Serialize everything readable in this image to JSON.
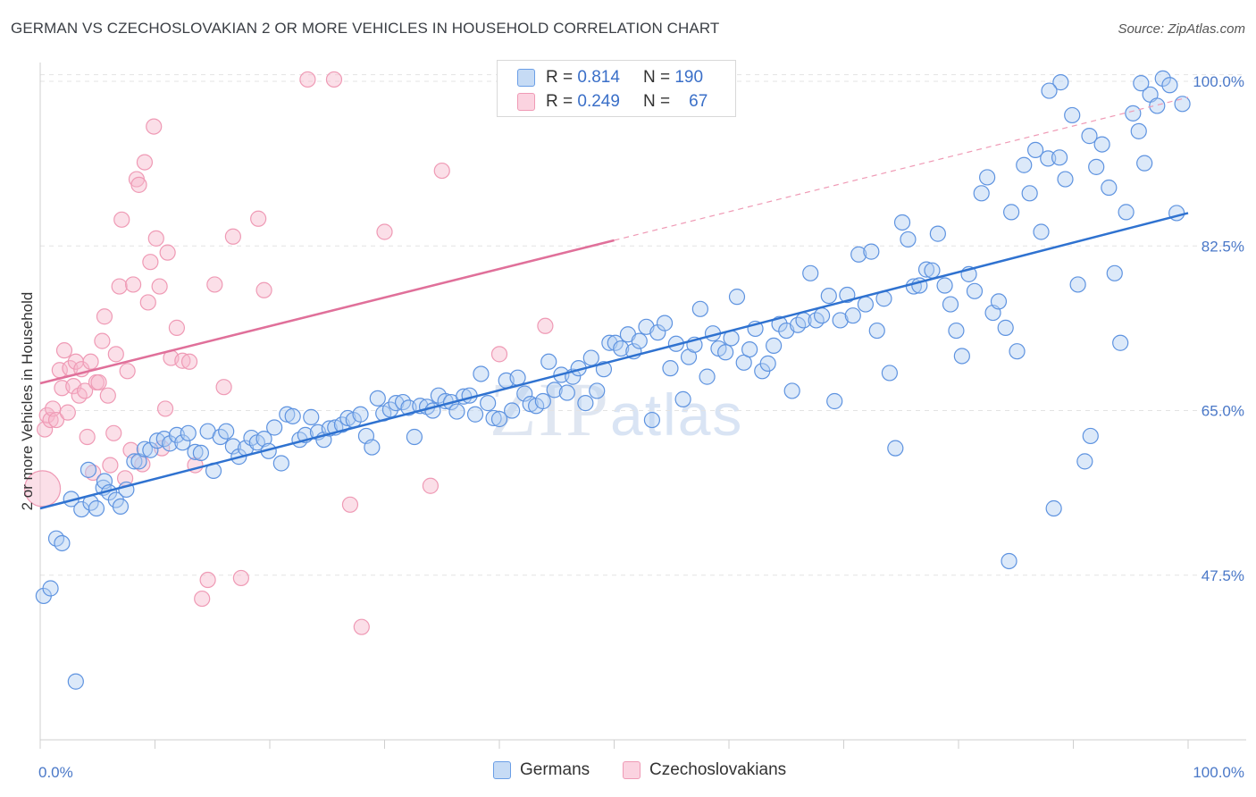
{
  "title": "GERMAN VS CZECHOSLOVAKIAN 2 OR MORE VEHICLES IN HOUSEHOLD CORRELATION CHART",
  "source": "Source: ZipAtlas.com",
  "watermark": {
    "zip": "ZIP",
    "atlas": "atlas"
  },
  "legend": {
    "german": {
      "r_label": "R = ",
      "r_value": "0.814",
      "n_label": "N = ",
      "n_value": "190",
      "color": "#6a9ee6"
    },
    "czech": {
      "r_label": "R = ",
      "r_value": "0.249",
      "n_label": "N = ",
      "n_value": "67",
      "color": "#ef9ab5"
    }
  },
  "bottom_legend": {
    "german": "Germans",
    "czech": "Czechoslovakians"
  },
  "chart_data": {
    "type": "scatter",
    "title": "GERMAN VS CZECHOSLOVAKIAN 2 OR MORE VEHICLES IN HOUSEHOLD CORRELATION CHART",
    "xlabel": "",
    "ylabel": "2 or more Vehicles in Household",
    "xlim": [
      0,
      100
    ],
    "ylim": [
      30,
      102
    ],
    "x_tick_labels": [
      "0.0%",
      "100.0%"
    ],
    "y_ticks": [
      47.5,
      65.0,
      82.5,
      100.0
    ],
    "y_tick_labels": [
      "47.5%",
      "65.0%",
      "82.5%",
      "100.0%"
    ],
    "series": [
      {
        "name": "Germans",
        "color": "#6a9ee6",
        "trend": {
          "x": [
            0,
            100
          ],
          "y": [
            54.6,
            86.0
          ],
          "style": "solid"
        },
        "points": [
          [
            0.3,
            45.3
          ],
          [
            0.9,
            46.1
          ],
          [
            1.4,
            51.4
          ],
          [
            1.9,
            50.9
          ],
          [
            2.7,
            55.6
          ],
          [
            3.1,
            36.2
          ],
          [
            3.6,
            54.5
          ],
          [
            4.2,
            58.7
          ],
          [
            4.4,
            55.2
          ],
          [
            4.9,
            54.6
          ],
          [
            5.5,
            56.8
          ],
          [
            5.6,
            57.5
          ],
          [
            6.0,
            56.3
          ],
          [
            6.6,
            55.5
          ],
          [
            7.0,
            54.8
          ],
          [
            7.5,
            56.6
          ],
          [
            8.2,
            59.6
          ],
          [
            8.6,
            59.6
          ],
          [
            9.1,
            60.9
          ],
          [
            9.6,
            60.8
          ],
          [
            10.2,
            61.8
          ],
          [
            10.8,
            62.0
          ],
          [
            11.3,
            61.5
          ],
          [
            11.9,
            62.4
          ],
          [
            12.4,
            61.6
          ],
          [
            12.9,
            62.6
          ],
          [
            13.5,
            60.6
          ],
          [
            14.0,
            60.5
          ],
          [
            14.6,
            62.8
          ],
          [
            15.1,
            58.6
          ],
          [
            15.7,
            62.2
          ],
          [
            16.2,
            62.8
          ],
          [
            16.8,
            61.2
          ],
          [
            17.3,
            60.1
          ],
          [
            17.9,
            61.0
          ],
          [
            18.4,
            62.1
          ],
          [
            18.9,
            61.6
          ],
          [
            19.5,
            62.0
          ],
          [
            19.9,
            60.7
          ],
          [
            20.4,
            63.2
          ],
          [
            21.0,
            59.4
          ],
          [
            21.5,
            64.6
          ],
          [
            22.0,
            64.4
          ],
          [
            22.6,
            61.9
          ],
          [
            23.1,
            62.4
          ],
          [
            23.6,
            64.3
          ],
          [
            24.2,
            62.7
          ],
          [
            24.7,
            61.9
          ],
          [
            25.2,
            63.1
          ],
          [
            25.7,
            63.2
          ],
          [
            26.3,
            63.5
          ],
          [
            26.8,
            64.2
          ],
          [
            27.3,
            64.0
          ],
          [
            27.9,
            64.6
          ],
          [
            28.4,
            62.3
          ],
          [
            28.9,
            61.1
          ],
          [
            29.4,
            66.3
          ],
          [
            29.9,
            64.7
          ],
          [
            30.5,
            65.1
          ],
          [
            31.0,
            65.8
          ],
          [
            31.6,
            65.9
          ],
          [
            32.1,
            65.3
          ],
          [
            32.6,
            62.2
          ],
          [
            33.1,
            65.5
          ],
          [
            33.7,
            65.4
          ],
          [
            34.2,
            65.0
          ],
          [
            34.7,
            66.6
          ],
          [
            35.3,
            66.0
          ],
          [
            35.8,
            65.9
          ],
          [
            36.3,
            64.9
          ],
          [
            36.9,
            66.5
          ],
          [
            37.4,
            66.6
          ],
          [
            37.9,
            64.6
          ],
          [
            38.4,
            68.9
          ],
          [
            39.0,
            65.8
          ],
          [
            39.5,
            64.2
          ],
          [
            40.0,
            64.1
          ],
          [
            40.6,
            68.2
          ],
          [
            41.1,
            65.0
          ],
          [
            41.6,
            68.5
          ],
          [
            42.2,
            66.8
          ],
          [
            42.7,
            65.7
          ],
          [
            43.2,
            65.5
          ],
          [
            43.8,
            66.0
          ],
          [
            44.3,
            70.2
          ],
          [
            44.8,
            67.2
          ],
          [
            45.4,
            68.8
          ],
          [
            45.9,
            66.9
          ],
          [
            46.4,
            68.6
          ],
          [
            46.9,
            69.5
          ],
          [
            47.5,
            65.8
          ],
          [
            48.0,
            70.6
          ],
          [
            48.5,
            67.1
          ],
          [
            49.1,
            69.4
          ],
          [
            49.6,
            72.2
          ],
          [
            50.1,
            72.2
          ],
          [
            50.6,
            71.6
          ],
          [
            51.2,
            73.1
          ],
          [
            51.7,
            71.3
          ],
          [
            52.2,
            72.4
          ],
          [
            52.8,
            73.9
          ],
          [
            53.3,
            64.0
          ],
          [
            53.8,
            73.3
          ],
          [
            54.4,
            74.3
          ],
          [
            54.9,
            69.5
          ],
          [
            55.4,
            72.1
          ],
          [
            56.0,
            66.2
          ],
          [
            56.5,
            70.7
          ],
          [
            57.0,
            72.0
          ],
          [
            57.5,
            75.8
          ],
          [
            58.1,
            68.6
          ],
          [
            58.6,
            73.2
          ],
          [
            59.1,
            71.6
          ],
          [
            59.7,
            71.2
          ],
          [
            60.2,
            72.7
          ],
          [
            60.7,
            77.1
          ],
          [
            61.3,
            70.1
          ],
          [
            61.8,
            71.5
          ],
          [
            62.3,
            73.7
          ],
          [
            62.9,
            69.2
          ],
          [
            63.4,
            70.0
          ],
          [
            63.9,
            71.9
          ],
          [
            64.4,
            74.2
          ],
          [
            65.0,
            73.5
          ],
          [
            65.5,
            67.1
          ],
          [
            66.0,
            74.1
          ],
          [
            66.5,
            74.6
          ],
          [
            67.1,
            79.6
          ],
          [
            67.6,
            74.6
          ],
          [
            68.1,
            75.1
          ],
          [
            68.7,
            77.2
          ],
          [
            69.2,
            66.0
          ],
          [
            69.7,
            74.6
          ],
          [
            70.3,
            77.3
          ],
          [
            70.8,
            75.1
          ],
          [
            71.3,
            81.6
          ],
          [
            71.9,
            76.3
          ],
          [
            72.4,
            81.9
          ],
          [
            72.9,
            73.5
          ],
          [
            73.5,
            76.9
          ],
          [
            74.0,
            69.0
          ],
          [
            74.5,
            61.0
          ],
          [
            75.1,
            85.0
          ],
          [
            75.6,
            83.2
          ],
          [
            76.1,
            78.2
          ],
          [
            76.6,
            78.3
          ],
          [
            77.2,
            80.0
          ],
          [
            77.7,
            79.9
          ],
          [
            78.2,
            83.8
          ],
          [
            78.8,
            78.3
          ],
          [
            79.3,
            76.3
          ],
          [
            79.8,
            73.5
          ],
          [
            80.3,
            70.8
          ],
          [
            80.9,
            79.5
          ],
          [
            81.4,
            77.7
          ],
          [
            82.0,
            88.1
          ],
          [
            82.5,
            89.8
          ],
          [
            83.0,
            75.4
          ],
          [
            83.5,
            76.6
          ],
          [
            84.1,
            73.8
          ],
          [
            84.6,
            86.1
          ],
          [
            85.1,
            71.3
          ],
          [
            85.7,
            91.1
          ],
          [
            86.2,
            88.1
          ],
          [
            86.7,
            92.7
          ],
          [
            87.2,
            84.0
          ],
          [
            87.8,
            91.8
          ],
          [
            88.3,
            54.6
          ],
          [
            88.8,
            91.9
          ],
          [
            89.3,
            89.6
          ],
          [
            89.9,
            96.4
          ],
          [
            90.4,
            78.4
          ],
          [
            91.0,
            59.6
          ],
          [
            91.5,
            62.3
          ],
          [
            92.0,
            90.9
          ],
          [
            92.5,
            93.3
          ],
          [
            93.1,
            88.7
          ],
          [
            93.6,
            79.6
          ],
          [
            94.1,
            72.2
          ],
          [
            94.6,
            86.1
          ],
          [
            95.2,
            96.6
          ],
          [
            95.7,
            94.7
          ],
          [
            96.2,
            91.3
          ],
          [
            96.7,
            98.6
          ],
          [
            97.3,
            97.4
          ],
          [
            97.8,
            100.3
          ],
          [
            98.4,
            99.6
          ],
          [
            99.0,
            86.0
          ],
          [
            99.5,
            97.6
          ],
          [
            84.4,
            49.0
          ],
          [
            91.4,
            94.2
          ],
          [
            88.9,
            99.9
          ],
          [
            87.9,
            99.0
          ],
          [
            95.9,
            99.8
          ]
        ]
      },
      {
        "name": "Czechoslovakians",
        "color": "#ef9ab5",
        "trend": {
          "x": [
            0,
            50
          ],
          "y": [
            67.9,
            83.1
          ],
          "style": "solid",
          "dashed_extension": {
            "x": [
              50,
              100
            ],
            "y": [
              83.1,
              98.3
            ]
          }
        },
        "points": [
          [
            0.2,
            56.7
          ],
          [
            0.4,
            63.0
          ],
          [
            0.6,
            64.5
          ],
          [
            0.9,
            64.0
          ],
          [
            1.1,
            65.2
          ],
          [
            1.4,
            64.0
          ],
          [
            1.7,
            69.3
          ],
          [
            1.9,
            67.4
          ],
          [
            2.1,
            71.4
          ],
          [
            2.4,
            64.8
          ],
          [
            2.6,
            69.5
          ],
          [
            2.9,
            67.6
          ],
          [
            3.1,
            70.2
          ],
          [
            3.4,
            66.6
          ],
          [
            3.6,
            69.4
          ],
          [
            3.9,
            67.1
          ],
          [
            4.1,
            62.2
          ],
          [
            4.4,
            70.2
          ],
          [
            4.6,
            58.4
          ],
          [
            4.9,
            68.0
          ],
          [
            5.1,
            68.0
          ],
          [
            5.4,
            72.4
          ],
          [
            5.6,
            75.0
          ],
          [
            5.9,
            66.6
          ],
          [
            6.1,
            59.2
          ],
          [
            6.4,
            62.6
          ],
          [
            6.6,
            71.0
          ],
          [
            6.9,
            78.2
          ],
          [
            7.1,
            85.3
          ],
          [
            7.4,
            57.8
          ],
          [
            7.6,
            69.2
          ],
          [
            7.9,
            60.8
          ],
          [
            8.1,
            78.4
          ],
          [
            8.4,
            89.6
          ],
          [
            8.6,
            89.0
          ],
          [
            8.9,
            59.3
          ],
          [
            9.1,
            91.4
          ],
          [
            9.4,
            76.5
          ],
          [
            9.6,
            80.8
          ],
          [
            9.9,
            95.2
          ],
          [
            10.1,
            83.3
          ],
          [
            10.4,
            78.2
          ],
          [
            10.6,
            61.0
          ],
          [
            10.9,
            65.2
          ],
          [
            11.1,
            81.8
          ],
          [
            11.4,
            70.6
          ],
          [
            11.9,
            73.8
          ],
          [
            12.4,
            70.3
          ],
          [
            13.0,
            70.2
          ],
          [
            13.5,
            59.2
          ],
          [
            14.1,
            45.0
          ],
          [
            14.6,
            47.0
          ],
          [
            15.2,
            78.4
          ],
          [
            16.0,
            67.5
          ],
          [
            16.8,
            83.5
          ],
          [
            17.5,
            47.2
          ],
          [
            19.0,
            85.4
          ],
          [
            19.5,
            77.8
          ],
          [
            23.3,
            100.2
          ],
          [
            25.6,
            100.2
          ],
          [
            27.0,
            55.0
          ],
          [
            28.0,
            42.0
          ],
          [
            30.0,
            84.0
          ],
          [
            34.0,
            57.0
          ],
          [
            35.0,
            90.5
          ],
          [
            40.0,
            71.0
          ],
          [
            44.0,
            74.0
          ]
        ]
      }
    ]
  }
}
